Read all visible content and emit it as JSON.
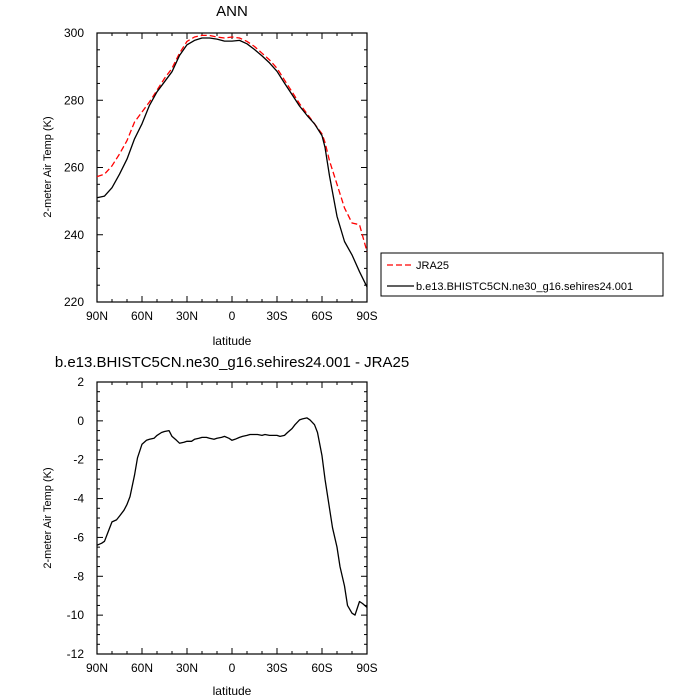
{
  "chart_data": [
    {
      "type": "line",
      "title": "ANN",
      "xlabel": "latitude",
      "ylabel": "2-meter Air Temp (K)",
      "xlim": [
        90,
        -90
      ],
      "ylim": [
        220,
        300
      ],
      "x_tick_labels": [
        "90N",
        "60N",
        "30N",
        "0",
        "30S",
        "60S",
        "90S"
      ],
      "y_tick_labels": [
        "220",
        "240",
        "260",
        "280",
        "300"
      ],
      "legend": {
        "placement": "outside-right",
        "entries": [
          "JRA25",
          "b.e13.BHISTC5CN.ne30_g16.sehires24.001"
        ]
      },
      "grid": false,
      "series": [
        {
          "name": "JRA25",
          "color": "#ff0000",
          "dash": "dashed",
          "x": [
            90,
            85,
            80,
            75,
            70,
            65,
            60,
            55,
            50,
            45,
            40,
            35,
            30,
            25,
            20,
            15,
            10,
            5,
            0,
            -5,
            -10,
            -15,
            -20,
            -25,
            -30,
            -35,
            -40,
            -45,
            -50,
            -55,
            -60,
            -62,
            -65,
            -70,
            -75,
            -80,
            -85,
            -90
          ],
          "values": [
            257.3,
            258,
            260.5,
            264,
            268,
            273.5,
            276.5,
            279.5,
            283,
            286.5,
            289.5,
            294,
            297.5,
            298.8,
            299.3,
            299.3,
            298.8,
            298.5,
            298.8,
            298.5,
            297.5,
            296,
            294,
            292,
            289.5,
            286,
            282.5,
            279,
            276,
            273,
            270,
            267.5,
            262,
            255,
            248,
            243.5,
            243,
            235
          ]
        },
        {
          "name": "b.e13.BHISTC5CN.ne30_g16.sehires24.001",
          "color": "#000000",
          "dash": "solid",
          "x": [
            90,
            85,
            80,
            75,
            70,
            65,
            60,
            55,
            50,
            45,
            40,
            35,
            30,
            25,
            20,
            15,
            10,
            5,
            0,
            -5,
            -10,
            -15,
            -20,
            -25,
            -30,
            -35,
            -40,
            -45,
            -50,
            -55,
            -60,
            -62,
            -65,
            -70,
            -75,
            -80,
            -85,
            -90
          ],
          "values": [
            251,
            251.5,
            254,
            258,
            262.5,
            268.5,
            273,
            278.5,
            282.5,
            285.5,
            288.5,
            293.3,
            296.5,
            297.8,
            298.5,
            298.5,
            298.2,
            297.6,
            297.6,
            297.8,
            296.8,
            295.1,
            293.2,
            291.1,
            288.6,
            285.1,
            281.7,
            278.3,
            275.5,
            273,
            269.5,
            266,
            257.5,
            245.5,
            238,
            234,
            229,
            224.5
          ]
        }
      ]
    },
    {
      "type": "line",
      "title": "b.e13.BHISTC5CN.ne30_g16.sehires24.001 - JRA25",
      "xlabel": "latitude",
      "ylabel": "2-meter Air Temp (K)",
      "xlim": [
        90,
        -90
      ],
      "ylim": [
        -12,
        2
      ],
      "x_tick_labels": [
        "90N",
        "60N",
        "30N",
        "0",
        "30S",
        "60S",
        "90S"
      ],
      "y_tick_labels": [
        "-12",
        "-10",
        "-8",
        "-6",
        "-4",
        "-2",
        "0",
        "2"
      ],
      "grid": false,
      "series": [
        {
          "color": "#000000",
          "dash": "solid",
          "x": [
            90,
            87,
            85,
            83,
            80,
            77,
            75,
            72,
            70,
            68,
            65,
            63,
            60,
            57,
            55,
            52,
            50,
            47,
            45,
            42,
            40,
            37,
            35,
            32,
            30,
            27,
            25,
            22,
            20,
            17,
            15,
            12,
            10,
            7,
            5,
            2,
            0,
            -2,
            -5,
            -7,
            -10,
            -12,
            -15,
            -17,
            -20,
            -22,
            -25,
            -27,
            -30,
            -32,
            -35,
            -37,
            -40,
            -42,
            -45,
            -47,
            -50,
            -52,
            -55,
            -57,
            -60,
            -62,
            -65,
            -67,
            -70,
            -72,
            -75,
            -77,
            -80,
            -82,
            -85,
            -87,
            -90
          ],
          "values": [
            -6.4,
            -6.3,
            -6.2,
            -5.8,
            -5.2,
            -5.1,
            -4.9,
            -4.6,
            -4.3,
            -3.9,
            -2.8,
            -1.9,
            -1.2,
            -1.0,
            -0.95,
            -0.9,
            -0.75,
            -0.6,
            -0.55,
            -0.5,
            -0.8,
            -1.0,
            -1.15,
            -1.1,
            -1.05,
            -1.05,
            -0.95,
            -0.9,
            -0.85,
            -0.85,
            -0.9,
            -0.95,
            -0.9,
            -0.85,
            -0.8,
            -0.9,
            -1.0,
            -0.95,
            -0.85,
            -0.8,
            -0.75,
            -0.7,
            -0.7,
            -0.7,
            -0.75,
            -0.7,
            -0.75,
            -0.75,
            -0.75,
            -0.8,
            -0.75,
            -0.6,
            -0.4,
            -0.2,
            0.05,
            0.1,
            0.15,
            0.05,
            -0.2,
            -0.6,
            -1.8,
            -3.0,
            -4.5,
            -5.5,
            -6.5,
            -7.5,
            -8.5,
            -9.5,
            -9.9,
            -10.0,
            -9.3,
            -9.4,
            -9.6
          ]
        }
      ]
    }
  ]
}
